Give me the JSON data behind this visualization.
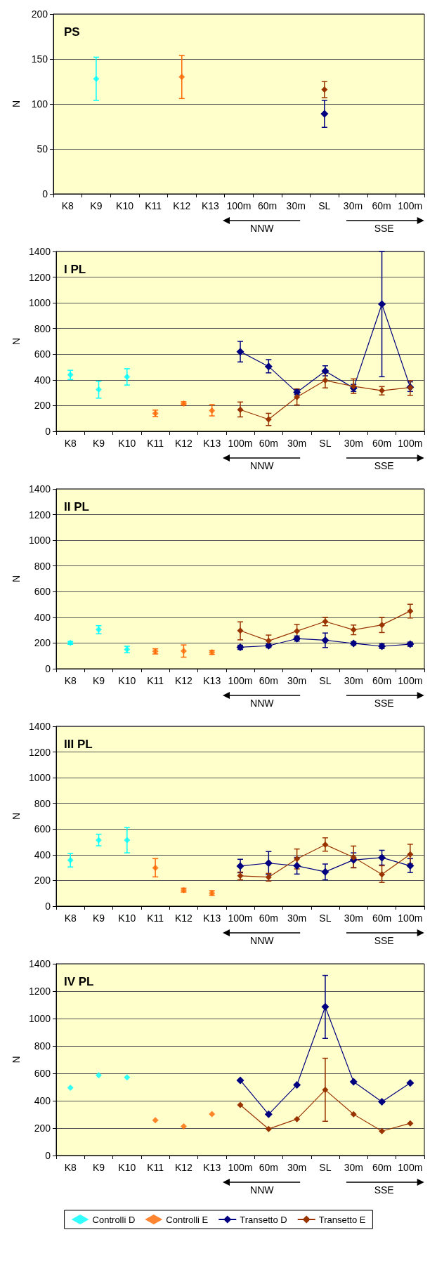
{
  "chart_data": [
    {
      "type": "line",
      "title": "PS",
      "ylabel": "N",
      "categories": [
        "K8",
        "K9",
        "K10",
        "K11",
        "K12",
        "K13",
        "100m",
        "60m",
        "30m",
        "SL",
        "30m",
        "60m",
        "100m"
      ],
      "ylim": [
        0,
        200
      ],
      "yticks": [
        0,
        50,
        100,
        150,
        200
      ],
      "grid": "y",
      "marker": "diamond",
      "line_style": "solid",
      "annotations": [
        "NNW",
        "SSE"
      ],
      "series": [
        {
          "type": "scatter",
          "color": "#00ffff",
          "values": [
            null,
            128,
            null,
            null,
            null,
            null,
            null,
            null,
            null,
            null,
            null,
            null,
            null
          ],
          "errors": [
            null,
            [
              104,
              152
            ],
            null,
            null,
            null,
            null,
            null,
            null,
            null,
            null,
            null,
            null,
            null
          ]
        },
        {
          "type": "scatter",
          "color": "#ff6600",
          "values": [
            null,
            null,
            null,
            null,
            130,
            null,
            null,
            null,
            null,
            null,
            null,
            null,
            null
          ],
          "errors": [
            null,
            null,
            null,
            null,
            [
              106,
              154
            ],
            null,
            null,
            null,
            null,
            null,
            null,
            null,
            null
          ]
        },
        {
          "type": "line",
          "color": "#000080",
          "values": [
            null,
            null,
            null,
            null,
            null,
            null,
            null,
            null,
            null,
            89,
            null,
            null,
            null
          ],
          "errors": [
            null,
            null,
            null,
            null,
            null,
            null,
            null,
            null,
            null,
            [
              74,
              104
            ],
            null,
            null,
            null
          ]
        },
        {
          "type": "line",
          "color": "#993300",
          "values": [
            null,
            null,
            null,
            null,
            null,
            null,
            null,
            null,
            null,
            116,
            null,
            null,
            null
          ],
          "errors": [
            null,
            null,
            null,
            null,
            null,
            null,
            null,
            null,
            null,
            [
              107,
              125
            ],
            null,
            null,
            null
          ]
        }
      ]
    },
    {
      "type": "line",
      "title": "I PL",
      "ylabel": "N",
      "categories": [
        "K8",
        "K9",
        "K10",
        "K11",
        "K12",
        "K13",
        "100m",
        "60m",
        "30m",
        "SL",
        "30m",
        "60m",
        "100m"
      ],
      "ylim": [
        0,
        1400
      ],
      "yticks": [
        0,
        200,
        400,
        600,
        800,
        1000,
        1200,
        1400
      ],
      "grid": "y",
      "marker": "diamond",
      "line_style": "solid",
      "annotations": [
        "NNW",
        "SSE"
      ],
      "series": [
        {
          "type": "scatter",
          "color": "#00ffff",
          "values": [
            440,
            325,
            424,
            null,
            null,
            null,
            null,
            null,
            null,
            null,
            null,
            null,
            null
          ],
          "errors": [
            [
              403,
              475
            ],
            [
              258,
              390
            ],
            [
              360,
              487
            ],
            null,
            null,
            null,
            null,
            null,
            null,
            null,
            null,
            null,
            null
          ]
        },
        {
          "type": "scatter",
          "color": "#ff6600",
          "values": [
            null,
            null,
            null,
            139,
            216,
            162,
            null,
            null,
            null,
            null,
            null,
            null,
            null
          ],
          "errors": [
            null,
            null,
            null,
            [
              115,
              165
            ],
            [
              205,
              230
            ],
            [
              120,
              208
            ],
            null,
            null,
            null,
            null,
            null,
            null,
            null
          ]
        },
        {
          "type": "line",
          "color": "#000080",
          "values": [
            null,
            null,
            null,
            null,
            null,
            null,
            620,
            505,
            303,
            469,
            337,
            990,
            343
          ],
          "errors": [
            null,
            null,
            null,
            null,
            null,
            null,
            [
              540,
              700
            ],
            [
              455,
              558
            ],
            [
              285,
              325
            ],
            [
              432,
              510
            ],
            [
              310,
              365
            ],
            [
              425,
              1400
            ],
            [
              310,
              385
            ]
          ]
        },
        {
          "type": "line",
          "color": "#993300",
          "values": [
            null,
            null,
            null,
            null,
            null,
            null,
            168,
            93,
            267,
            396,
            350,
            317,
            341
          ],
          "errors": [
            null,
            null,
            null,
            null,
            null,
            null,
            [
              112,
              228
            ],
            [
              45,
              140
            ],
            [
              205,
              330
            ],
            [
              338,
              455
            ],
            [
              295,
              408
            ],
            [
              283,
              348
            ],
            [
              280,
              395
            ]
          ]
        }
      ]
    },
    {
      "type": "line",
      "title": "II PL",
      "ylabel": "N",
      "categories": [
        "K8",
        "K9",
        "K10",
        "K11",
        "K12",
        "K13",
        "100m",
        "60m",
        "30m",
        "SL",
        "30m",
        "60m",
        "100m"
      ],
      "ylim": [
        0,
        1400
      ],
      "yticks": [
        0,
        200,
        400,
        600,
        800,
        1000,
        1200,
        1400
      ],
      "grid": "y",
      "marker": "diamond",
      "line_style": "solid",
      "annotations": [
        "NNW",
        "SSE"
      ],
      "series": [
        {
          "type": "scatter",
          "color": "#00ffff",
          "values": [
            201,
            305,
            150,
            null,
            null,
            null,
            null,
            null,
            null,
            null,
            null,
            null,
            null
          ],
          "errors": [
            [
              190,
              212
            ],
            [
              272,
              335
            ],
            [
              125,
              175
            ],
            null,
            null,
            null,
            null,
            null,
            null,
            null,
            null,
            null,
            null
          ]
        },
        {
          "type": "scatter",
          "color": "#ff6600",
          "values": [
            null,
            null,
            null,
            136,
            138,
            128,
            null,
            null,
            null,
            null,
            null,
            null,
            null
          ],
          "errors": [
            null,
            null,
            null,
            [
              115,
              155
            ],
            [
              90,
              185
            ],
            [
              112,
              142
            ],
            null,
            null,
            null,
            null,
            null,
            null,
            null
          ]
        },
        {
          "type": "line",
          "color": "#000080",
          "values": [
            null,
            null,
            null,
            null,
            null,
            null,
            167,
            179,
            234,
            222,
            197,
            175,
            191
          ],
          "errors": [
            null,
            null,
            null,
            null,
            null,
            null,
            [
              150,
              183
            ],
            [
              165,
              192
            ],
            [
              215,
              255
            ],
            [
              165,
              278
            ],
            [
              185,
              210
            ],
            [
              158,
              192
            ],
            [
              175,
              207
            ]
          ]
        },
        {
          "type": "line",
          "color": "#993300",
          "values": [
            null,
            null,
            null,
            null,
            null,
            null,
            297,
            217,
            293,
            368,
            303,
            341,
            449
          ],
          "errors": [
            null,
            null,
            null,
            null,
            null,
            null,
            [
              225,
              365
            ],
            [
              175,
              262
            ],
            [
              245,
              345
            ],
            [
              335,
              400
            ],
            [
              265,
              340
            ],
            [
              282,
              400
            ],
            [
              395,
              502
            ]
          ]
        }
      ]
    },
    {
      "type": "line",
      "title": "III PL",
      "ylabel": "N",
      "categories": [
        "K8",
        "K9",
        "K10",
        "K11",
        "K12",
        "K13",
        "100m",
        "60m",
        "30m",
        "SL",
        "30m",
        "60m",
        "100m"
      ],
      "ylim": [
        0,
        1400
      ],
      "yticks": [
        0,
        200,
        400,
        600,
        800,
        1000,
        1200,
        1400
      ],
      "grid": "y",
      "marker": "diamond",
      "line_style": "solid",
      "annotations": [
        "NNW",
        "SSE"
      ],
      "series": [
        {
          "type": "scatter",
          "color": "#00ffff",
          "values": [
            358,
            514,
            514,
            null,
            null,
            null,
            null,
            null,
            null,
            null,
            null,
            null,
            null
          ],
          "errors": [
            [
              305,
              410
            ],
            [
              470,
              560
            ],
            [
              415,
              612
            ],
            null,
            null,
            null,
            null,
            null,
            null,
            null,
            null,
            null,
            null
          ]
        },
        {
          "type": "scatter",
          "color": "#ff6600",
          "values": [
            null,
            null,
            null,
            298,
            125,
            101,
            null,
            null,
            null,
            null,
            null,
            null,
            null
          ],
          "errors": [
            null,
            null,
            null,
            [
              228,
              370
            ],
            [
              110,
              140
            ],
            [
              85,
              120
            ],
            null,
            null,
            null,
            null,
            null,
            null,
            null
          ]
        },
        {
          "type": "line",
          "color": "#000080",
          "values": [
            null,
            null,
            null,
            null,
            null,
            null,
            312,
            335,
            314,
            267,
            360,
            378,
            314
          ],
          "errors": [
            null,
            null,
            null,
            null,
            null,
            null,
            [
              260,
              365
            ],
            [
              245,
              425
            ],
            [
              250,
              380
            ],
            [
              205,
              328
            ],
            [
              300,
              415
            ],
            [
              320,
              435
            ],
            [
              262,
              370
            ]
          ]
        },
        {
          "type": "line",
          "color": "#993300",
          "values": [
            null,
            null,
            null,
            null,
            null,
            null,
            236,
            226,
            368,
            479,
            380,
            247,
            403
          ],
          "errors": [
            null,
            null,
            null,
            null,
            null,
            null,
            [
              205,
              265
            ],
            [
              195,
              255
            ],
            [
              290,
              445
            ],
            [
              428,
              532
            ],
            [
              298,
              468
            ],
            [
              185,
              315
            ],
            [
              330,
              482
            ]
          ]
        }
      ]
    },
    {
      "type": "line",
      "title": "IV PL",
      "ylabel": "N",
      "categories": [
        "K8",
        "K9",
        "K10",
        "K11",
        "K12",
        "K13",
        "100m",
        "60m",
        "30m",
        "SL",
        "30m",
        "60m",
        "100m"
      ],
      "ylim": [
        0,
        1400
      ],
      "yticks": [
        0,
        200,
        400,
        600,
        800,
        1000,
        1200,
        1400
      ],
      "grid": "y",
      "marker": "diamond",
      "line_style": "solid",
      "legend": "bottom",
      "annotations": [
        "NNW",
        "SSE"
      ],
      "series": [
        {
          "type": "scatter",
          "name": "Controlli D",
          "color": "#00ffff",
          "values": [
            495,
            586,
            570,
            null,
            null,
            null,
            null,
            null,
            null,
            null,
            null,
            null,
            null
          ]
        },
        {
          "type": "scatter",
          "name": "Controlli E",
          "color": "#ff6600",
          "values": [
            null,
            null,
            null,
            258,
            213,
            303,
            null,
            null,
            null,
            null,
            null,
            null,
            null
          ]
        },
        {
          "type": "line",
          "name": "Transetto D",
          "color": "#000080",
          "values": [
            null,
            null,
            null,
            null,
            null,
            null,
            549,
            301,
            516,
            1086,
            539,
            392,
            530
          ],
          "errors": [
            null,
            null,
            null,
            null,
            null,
            null,
            null,
            null,
            null,
            [
              855,
              1315
            ],
            null,
            null,
            null
          ]
        },
        {
          "type": "line",
          "name": "Transetto E",
          "color": "#993300",
          "values": [
            null,
            null,
            null,
            null,
            null,
            null,
            369,
            194,
            266,
            479,
            301,
            178,
            235
          ],
          "errors": [
            null,
            null,
            null,
            null,
            null,
            null,
            null,
            null,
            null,
            [
              250,
              710
            ],
            null,
            null,
            null
          ]
        }
      ]
    }
  ]
}
